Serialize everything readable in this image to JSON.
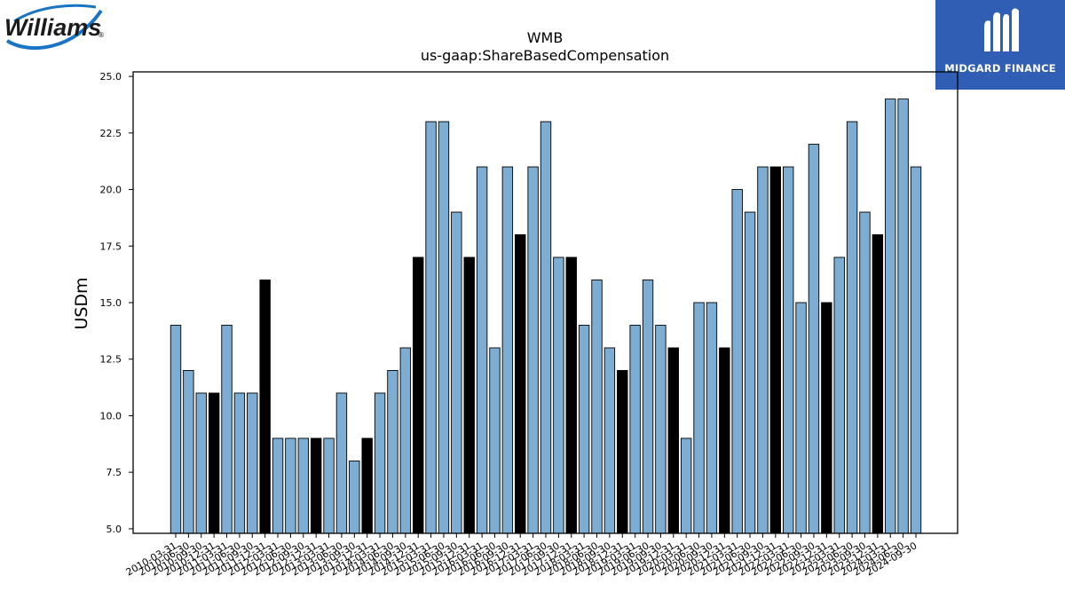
{
  "logos": {
    "left_text": "Williams",
    "left_trademark": "®",
    "right_text": "MIDGARD FINANCE"
  },
  "colors": {
    "bar_default": "#7eadd3",
    "bar_highlight": "#000000",
    "bar_edge": "#000000",
    "williams_blue": "#1a74c6",
    "midgard_blue": "#2f5eb4"
  },
  "chart_data": {
    "type": "bar",
    "title": "WMB",
    "subtitle": "us-gaap:ShareBasedCompensation",
    "xlabel": "",
    "ylabel": "USDm",
    "ylim": [
      4.8,
      25.2
    ],
    "yticks": [
      "5.0",
      "7.5",
      "10.0",
      "12.5",
      "15.0",
      "17.5",
      "20.0",
      "22.5",
      "25.0"
    ],
    "grid": false,
    "legend": "none",
    "categories": [
      "2010-03-31",
      "2010-06-30",
      "2010-09-30",
      "2010-12-31",
      "2011-03-31",
      "2011-06-30",
      "2011-09-30",
      "2011-12-31",
      "2012-03-31",
      "2012-06-30",
      "2012-09-30",
      "2012-12-31",
      "2013-03-31",
      "2013-06-30",
      "2013-09-30",
      "2013-12-31",
      "2014-03-31",
      "2014-06-30",
      "2014-09-30",
      "2014-12-31",
      "2015-03-31",
      "2015-06-30",
      "2015-09-30",
      "2015-12-31",
      "2016-03-31",
      "2016-06-30",
      "2016-09-30",
      "2016-12-31",
      "2017-03-31",
      "2017-06-30",
      "2017-09-30",
      "2017-12-31",
      "2018-03-31",
      "2018-06-30",
      "2018-09-30",
      "2018-12-31",
      "2019-03-31",
      "2019-06-30",
      "2019-09-30",
      "2019-12-31",
      "2020-03-31",
      "2020-06-30",
      "2020-09-30",
      "2020-12-31",
      "2021-03-31",
      "2021-06-30",
      "2021-09-30",
      "2021-12-31",
      "2022-03-31",
      "2022-06-30",
      "2022-09-30",
      "2022-12-31",
      "2023-03-31",
      "2023-06-30",
      "2023-09-30",
      "2023-12-31",
      "2024-03-31",
      "2024-06-30",
      "2024-09-30"
    ],
    "values": [
      14,
      12,
      11,
      11,
      14,
      11,
      11,
      16,
      9,
      9,
      9,
      9,
      9,
      11,
      8,
      9,
      11,
      12,
      13,
      17,
      23,
      23,
      19,
      17,
      21,
      13,
      21,
      18,
      21,
      23,
      17,
      17,
      14,
      16,
      13,
      12,
      14,
      16,
      14,
      13,
      9,
      15,
      15,
      13,
      20,
      19,
      21,
      21,
      21,
      15,
      22,
      15,
      17,
      23,
      19,
      18,
      24,
      24,
      21
    ],
    "highlight": [
      false,
      false,
      false,
      true,
      false,
      false,
      false,
      true,
      false,
      false,
      false,
      true,
      false,
      false,
      false,
      true,
      false,
      false,
      false,
      true,
      false,
      false,
      false,
      true,
      false,
      false,
      false,
      true,
      false,
      false,
      false,
      true,
      false,
      false,
      false,
      true,
      false,
      false,
      false,
      true,
      false,
      false,
      false,
      true,
      false,
      false,
      false,
      true,
      false,
      false,
      false,
      true,
      false,
      false,
      false,
      true,
      false,
      false,
      false
    ]
  }
}
